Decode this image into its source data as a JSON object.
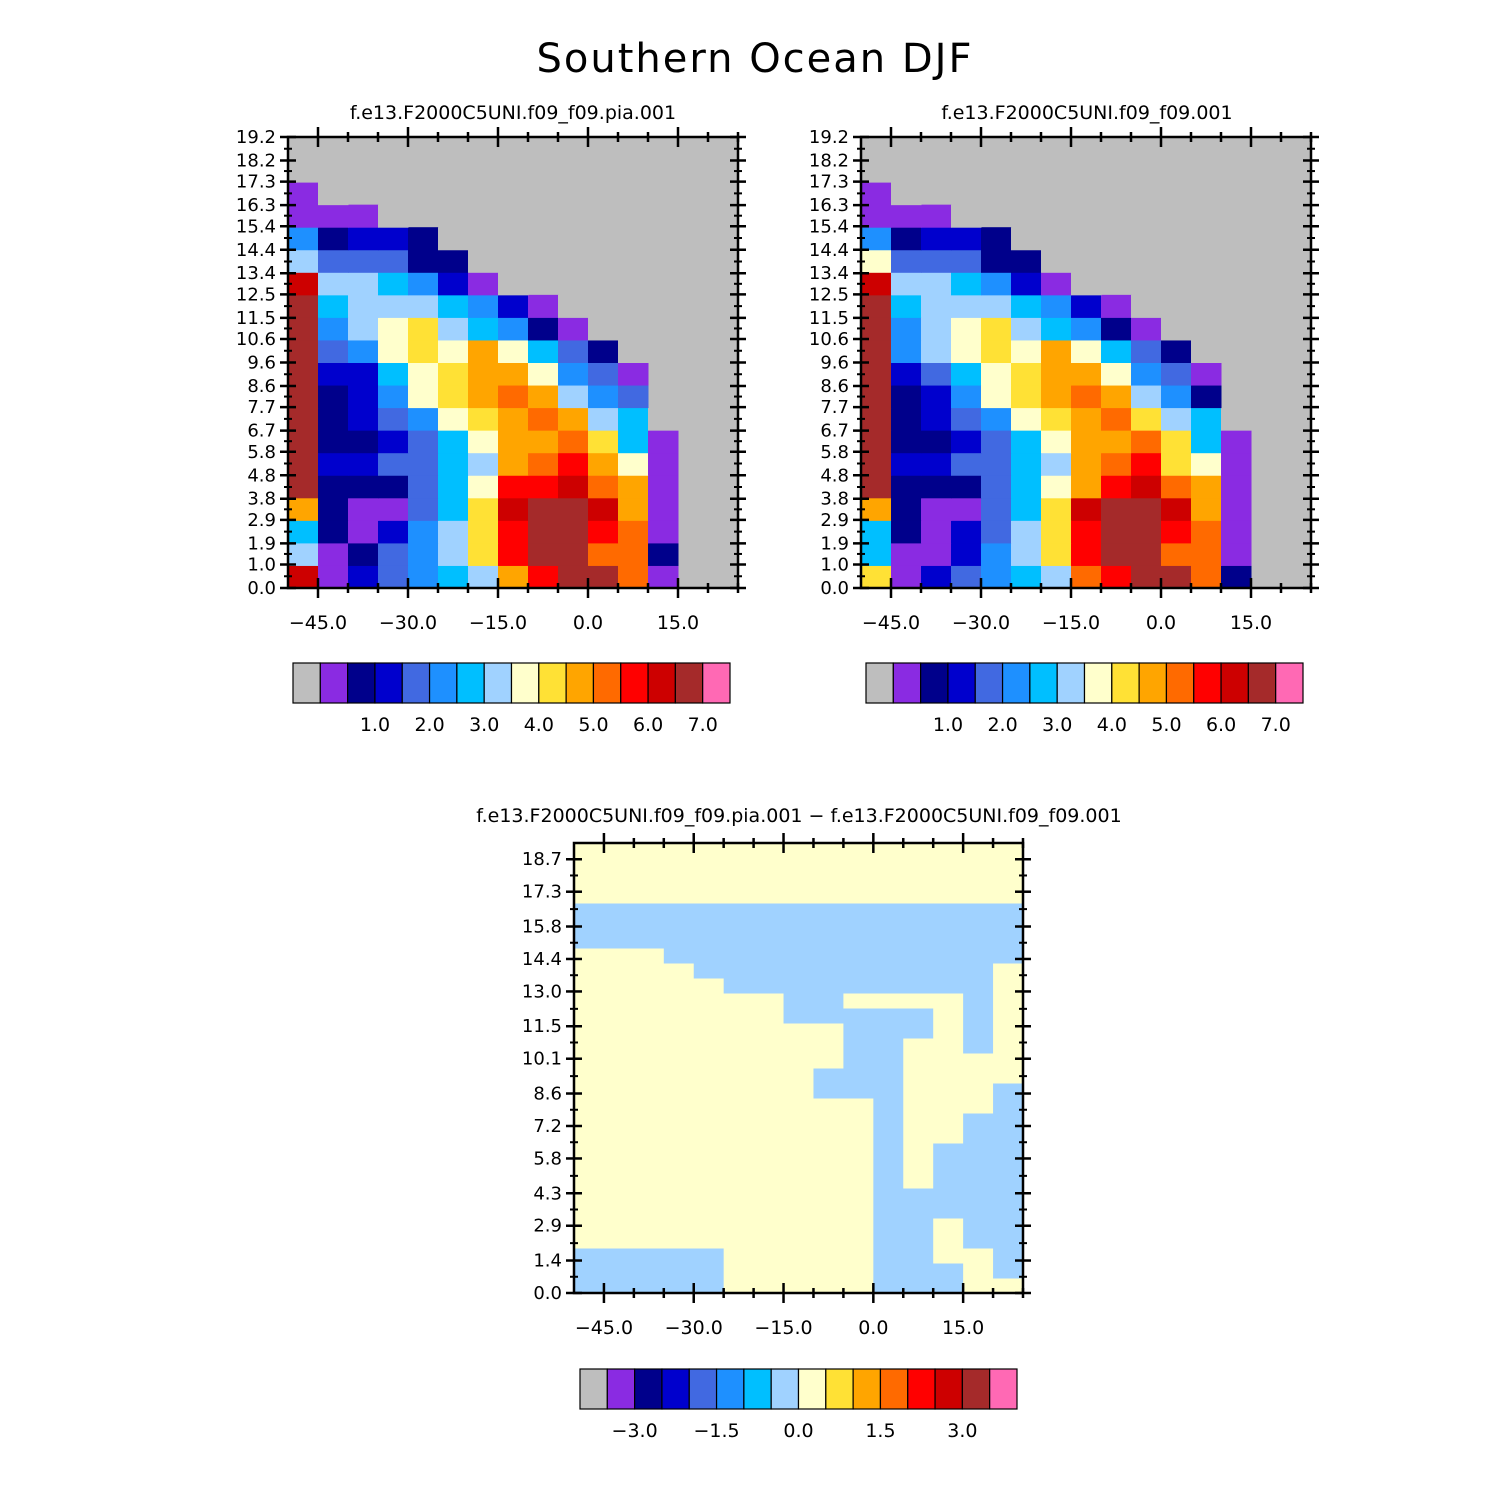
{
  "figure": {
    "title": "Southern Ocean DJF"
  },
  "colors": {
    "missing": "#bebebe",
    "palette": [
      "#8a2be2",
      "#00008b",
      "#0000cd",
      "#4169e1",
      "#1e90ff",
      "#00bfff",
      "#a0d2ff",
      "#ffffcc",
      "#ffe135",
      "#ffa500",
      "#ff6a00",
      "#ff0000",
      "#cd0000",
      "#a52a2a",
      "#ff69b4"
    ],
    "diff_blue": "#a0d2ff",
    "diff_yellow": "#ffffcc"
  },
  "chart_data": [
    {
      "type": "heatmap",
      "title": "f.e13.F2000C5UNI.f09_f09.pia.001",
      "xlabel": "",
      "ylabel": "",
      "x_ticks": [
        "−45.0",
        "−30.0",
        "−15.0",
        "0.0",
        "15.0"
      ],
      "x_tick_values": [
        -45,
        -30,
        -15,
        0,
        15
      ],
      "xlim": [
        -50,
        25
      ],
      "y_ticks": [
        "0.0",
        "1.0",
        "1.9",
        "2.9",
        "3.8",
        "4.8",
        "5.8",
        "6.7",
        "7.7",
        "8.6",
        "9.6",
        "10.6",
        "11.5",
        "12.5",
        "13.4",
        "14.4",
        "15.4",
        "16.3",
        "17.3",
        "18.2",
        "19.2"
      ],
      "ylim": [
        0,
        19.2
      ],
      "colorbar_labels": [
        "1.0",
        "2.0",
        "3.0",
        "4.0",
        "5.0",
        "6.0",
        "7.0"
      ],
      "colorbar_levels": [
        0.5,
        1.0,
        1.5,
        2.0,
        2.5,
        3.0,
        3.5,
        4.0,
        4.5,
        5.0,
        5.5,
        6.0,
        6.5,
        7.0
      ],
      "x_edges": [
        -50,
        -45,
        -40,
        -35,
        -30,
        -25,
        -20,
        -15,
        -10,
        -5,
        0,
        5,
        10,
        15
      ],
      "rows_bottom_to_top": [
        [
          13,
          1,
          3,
          4,
          5,
          6,
          7,
          10,
          12,
          14,
          14,
          11,
          1
        ],
        [
          7,
          1,
          2,
          4,
          5,
          7,
          9,
          12,
          14,
          14,
          11,
          11,
          2
        ],
        [
          6,
          2,
          1,
          3,
          5,
          7,
          9,
          12,
          14,
          14,
          12,
          11,
          1
        ],
        [
          10,
          2,
          1,
          1,
          4,
          6,
          9,
          13,
          14,
          14,
          13,
          10,
          1
        ],
        [
          14,
          2,
          2,
          2,
          4,
          6,
          8,
          12,
          12,
          13,
          11,
          10,
          1
        ],
        [
          14,
          3,
          3,
          4,
          4,
          6,
          7,
          10,
          11,
          12,
          10,
          8,
          1
        ],
        [
          14,
          2,
          2,
          3,
          4,
          6,
          8,
          10,
          10,
          11,
          9,
          6,
          1
        ],
        [
          14,
          2,
          3,
          4,
          5,
          8,
          9,
          10,
          11,
          10,
          7,
          6,
          0
        ],
        [
          14,
          2,
          3,
          5,
          8,
          9,
          10,
          11,
          10,
          7,
          5,
          4
        ],
        [
          14,
          3,
          3,
          6,
          8,
          9,
          10,
          10,
          8,
          5,
          4,
          1
        ],
        [
          14,
          4,
          5,
          8,
          9,
          8,
          10,
          8,
          6,
          4,
          2,
          0
        ],
        [
          14,
          5,
          7,
          8,
          9,
          7,
          6,
          5,
          2,
          1,
          0
        ],
        [
          14,
          6,
          7,
          7,
          7,
          6,
          5,
          3,
          1,
          0
        ],
        [
          13,
          7,
          7,
          6,
          5,
          3,
          1,
          0
        ],
        [
          7,
          4,
          4,
          4,
          2,
          2,
          0
        ],
        [
          5,
          2,
          3,
          3,
          2,
          0
        ],
        [
          1,
          1,
          1,
          0
        ],
        [
          1,
          0
        ],
        [
          0
        ]
      ]
    },
    {
      "type": "heatmap",
      "title": "f.e13.F2000C5UNI.f09_f09.001",
      "xlabel": "",
      "ylabel": "",
      "x_ticks": [
        "−45.0",
        "−30.0",
        "−15.0",
        "0.0",
        "15.0"
      ],
      "x_tick_values": [
        -45,
        -30,
        -15,
        0,
        15
      ],
      "xlim": [
        -50,
        25
      ],
      "y_ticks": [
        "0.0",
        "1.0",
        "1.9",
        "2.9",
        "3.8",
        "4.8",
        "5.8",
        "6.7",
        "7.7",
        "8.6",
        "9.6",
        "10.6",
        "11.5",
        "12.5",
        "13.4",
        "14.4",
        "15.4",
        "16.3",
        "17.3",
        "18.2",
        "19.2"
      ],
      "ylim": [
        0,
        19.2
      ],
      "colorbar_labels": [
        "1.0",
        "2.0",
        "3.0",
        "4.0",
        "5.0",
        "6.0",
        "7.0"
      ],
      "colorbar_levels": [
        0.5,
        1.0,
        1.5,
        2.0,
        2.5,
        3.0,
        3.5,
        4.0,
        4.5,
        5.0,
        5.5,
        6.0,
        6.5,
        7.0
      ],
      "x_edges": [
        -50,
        -45,
        -40,
        -35,
        -30,
        -25,
        -20,
        -15,
        -10,
        -5,
        0,
        5,
        10,
        15
      ],
      "rows_bottom_to_top": [
        [
          9,
          1,
          3,
          4,
          5,
          6,
          7,
          11,
          12,
          14,
          14,
          11,
          2
        ],
        [
          6,
          1,
          1,
          3,
          5,
          7,
          9,
          12,
          14,
          14,
          11,
          11,
          1
        ],
        [
          6,
          2,
          1,
          3,
          4,
          7,
          9,
          12,
          14,
          14,
          12,
          11,
          1
        ],
        [
          10,
          2,
          1,
          1,
          4,
          6,
          9,
          13,
          14,
          14,
          13,
          10,
          1
        ],
        [
          14,
          2,
          2,
          2,
          4,
          6,
          8,
          10,
          12,
          13,
          11,
          10,
          1
        ],
        [
          14,
          3,
          3,
          4,
          4,
          6,
          7,
          10,
          11,
          12,
          9,
          8,
          1
        ],
        [
          14,
          2,
          2,
          3,
          4,
          6,
          8,
          10,
          10,
          11,
          9,
          6,
          1
        ],
        [
          14,
          2,
          3,
          4,
          5,
          8,
          9,
          10,
          11,
          9,
          7,
          6,
          0
        ],
        [
          14,
          2,
          3,
          5,
          8,
          9,
          10,
          11,
          10,
          7,
          5,
          2
        ],
        [
          14,
          3,
          4,
          6,
          8,
          9,
          10,
          10,
          8,
          5,
          4,
          1
        ],
        [
          14,
          5,
          7,
          8,
          9,
          8,
          10,
          8,
          6,
          4,
          2,
          0
        ],
        [
          14,
          5,
          7,
          8,
          9,
          7,
          6,
          5,
          2,
          1,
          0
        ],
        [
          14,
          6,
          7,
          7,
          7,
          6,
          5,
          3,
          1,
          0
        ],
        [
          13,
          7,
          7,
          6,
          5,
          3,
          1,
          0
        ],
        [
          8,
          4,
          4,
          4,
          2,
          2,
          0
        ],
        [
          5,
          2,
          3,
          3,
          2,
          0
        ],
        [
          1,
          1,
          1,
          0
        ],
        [
          1,
          0
        ],
        [
          0
        ]
      ]
    },
    {
      "type": "heatmap",
      "title": "f.e13.F2000C5UNI.f09_f09.pia.001 − f.e13.F2000C5UNI.f09_f09.001",
      "xlabel": "",
      "ylabel": "",
      "x_ticks": [
        "−45.0",
        "−30.0",
        "−15.0",
        "0.0",
        "15.0"
      ],
      "x_tick_values": [
        -45,
        -30,
        -15,
        0,
        15
      ],
      "xlim": [
        -50,
        25
      ],
      "y_ticks": [
        "0.0",
        "1.4",
        "2.9",
        "4.3",
        "5.8",
        "7.2",
        "8.6",
        "10.1",
        "11.5",
        "13.0",
        "14.4",
        "15.8",
        "17.3",
        "18.7"
      ],
      "ylim": [
        0,
        19.4
      ],
      "colorbar_labels": [
        "−3.0",
        "−1.5",
        "0.0",
        "1.5",
        "3.0"
      ],
      "colorbar_levels": [
        -3.5,
        -3.0,
        -2.5,
        -2.0,
        -1.5,
        -1.0,
        -0.5,
        0.0,
        0.5,
        1.0,
        1.5,
        2.0,
        2.5,
        3.0,
        3.5
      ],
      "note_values": "sign of difference per cell: 0 = small negative (light blue band), 1 = small positive (pale yellow band)",
      "grid_cols": 15,
      "grid_rows": 30,
      "grid_bottom_to_top": [
        "000001111100011",
        "000001111100010",
        "000001111100110",
        "111111111100100",
        "111111111100100",
        "111111111100000",
        "111111111100000",
        "111111111101000",
        "111111111101000",
        "111111111101000",
        "111111111101100",
        "111111111101100",
        "111111111101110",
        "111111110001110",
        "111111110001111",
        "111111111001111",
        "111111111001101",
        "111111111000101",
        "111111100000101",
        "111111100111101",
        "111110000000001",
        "111100000000001",
        "111000000000000",
        "000000000000000",
        "000000000000000",
        "000000000000000",
        "111111111111111",
        "111111111111111",
        "111111111111111",
        "111111111111111"
      ]
    }
  ]
}
